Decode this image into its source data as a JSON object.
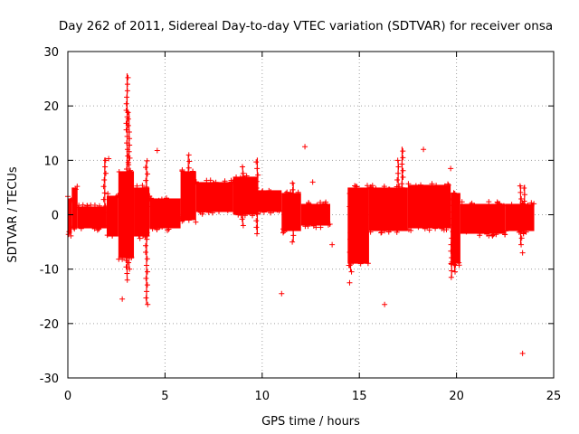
{
  "chart_data": {
    "type": "scatter",
    "title": "Day 262 of 2011, Sidereal Day-to-day VTEC variation (SDTVAR) for receiver onsa",
    "xlabel": "GPS time / hours",
    "ylabel": "SDTVAR / TECUs",
    "xlim": [
      0,
      25
    ],
    "ylim": [
      -30,
      30
    ],
    "x_ticks": [
      0,
      5,
      10,
      15,
      20,
      25
    ],
    "y_ticks": [
      -30,
      -20,
      -10,
      0,
      10,
      20,
      30
    ],
    "grid": true,
    "marker": "+",
    "colors": {
      "series": "#ff0000",
      "grid": "#a0a0a0",
      "axis": "#000000"
    },
    "series": [
      {
        "name": "SDTVAR",
        "bands": [
          {
            "x": [
              0.0,
              0.2
            ],
            "y": [
              -3.5,
              3.0
            ]
          },
          {
            "x": [
              0.2,
              0.5
            ],
            "y": [
              -2.5,
              5.0
            ]
          },
          {
            "x": [
              0.5,
              2.0
            ],
            "y": [
              -2.5,
              1.5
            ]
          },
          {
            "x": [
              2.0,
              2.6
            ],
            "y": [
              -4.0,
              3.5
            ]
          },
          {
            "x": [
              2.6,
              3.4
            ],
            "y": [
              -8.0,
              8.0
            ]
          },
          {
            "x": [
              3.4,
              4.2
            ],
            "y": [
              -4.0,
              5.0
            ]
          },
          {
            "x": [
              4.2,
              5.8
            ],
            "y": [
              -2.5,
              3.0
            ]
          },
          {
            "x": [
              5.8,
              6.6
            ],
            "y": [
              -1.0,
              8.0
            ]
          },
          {
            "x": [
              6.6,
              8.5
            ],
            "y": [
              0.5,
              6.0
            ]
          },
          {
            "x": [
              8.5,
              9.8
            ],
            "y": [
              0.0,
              7.0
            ]
          },
          {
            "x": [
              9.8,
              11.0
            ],
            "y": [
              0.5,
              4.5
            ]
          },
          {
            "x": [
              11.0,
              12.0
            ],
            "y": [
              -3.0,
              4.0
            ]
          },
          {
            "x": [
              12.0,
              13.5
            ],
            "y": [
              -2.0,
              2.0
            ]
          },
          {
            "x": [
              14.4,
              15.5
            ],
            "y": [
              -9.0,
              5.0
            ]
          },
          {
            "x": [
              15.5,
              17.5
            ],
            "y": [
              -3.0,
              5.0
            ]
          },
          {
            "x": [
              17.5,
              19.7
            ],
            "y": [
              -2.5,
              5.5
            ]
          },
          {
            "x": [
              19.7,
              20.2
            ],
            "y": [
              -9.0,
              4.0
            ]
          },
          {
            "x": [
              20.2,
              22.5
            ],
            "y": [
              -3.5,
              2.0
            ]
          },
          {
            "x": [
              22.5,
              24.0
            ],
            "y": [
              -3.0,
              2.0
            ]
          }
        ],
        "spikes": [
          {
            "x": 3.05,
            "y": [
              -12.0,
              26.0
            ]
          },
          {
            "x": 3.15,
            "y": [
              -10.0,
              19.0
            ]
          },
          {
            "x": 4.05,
            "y": [
              -16.5,
              10.0
            ]
          },
          {
            "x": 6.2,
            "y": [
              -1.0,
              11.0
            ]
          },
          {
            "x": 9.0,
            "y": [
              -2.0,
              9.0
            ]
          },
          {
            "x": 9.75,
            "y": [
              -3.5,
              10.5
            ]
          },
          {
            "x": 11.6,
            "y": [
              -5.0,
              6.0
            ]
          },
          {
            "x": 14.55,
            "y": [
              -10.5,
              4.0
            ]
          },
          {
            "x": 17.0,
            "y": [
              -2.0,
              10.0
            ]
          },
          {
            "x": 17.2,
            "y": [
              -1.5,
              12.5
            ]
          },
          {
            "x": 19.75,
            "y": [
              -11.5,
              4.0
            ]
          },
          {
            "x": 19.9,
            "y": [
              -10.5,
              4.0
            ]
          },
          {
            "x": 23.3,
            "y": [
              -5.5,
              5.5
            ]
          },
          {
            "x": 23.5,
            "y": [
              -3.5,
              5.5
            ]
          },
          {
            "x": 1.9,
            "y": [
              -2.0,
              10.5
            ]
          }
        ],
        "outliers": [
          {
            "x": 2.8,
            "y": -15.5
          },
          {
            "x": 4.6,
            "y": 11.8
          },
          {
            "x": 11.0,
            "y": -14.5
          },
          {
            "x": 12.2,
            "y": 12.5
          },
          {
            "x": 12.6,
            "y": 6.0
          },
          {
            "x": 13.6,
            "y": -5.5
          },
          {
            "x": 14.5,
            "y": -12.5
          },
          {
            "x": 16.3,
            "y": -16.5
          },
          {
            "x": 18.3,
            "y": 12.0
          },
          {
            "x": 19.7,
            "y": 8.5
          },
          {
            "x": 23.4,
            "y": -25.5
          },
          {
            "x": 23.4,
            "y": -7.0
          },
          {
            "x": 2.1,
            "y": 10.3
          }
        ]
      }
    ]
  }
}
